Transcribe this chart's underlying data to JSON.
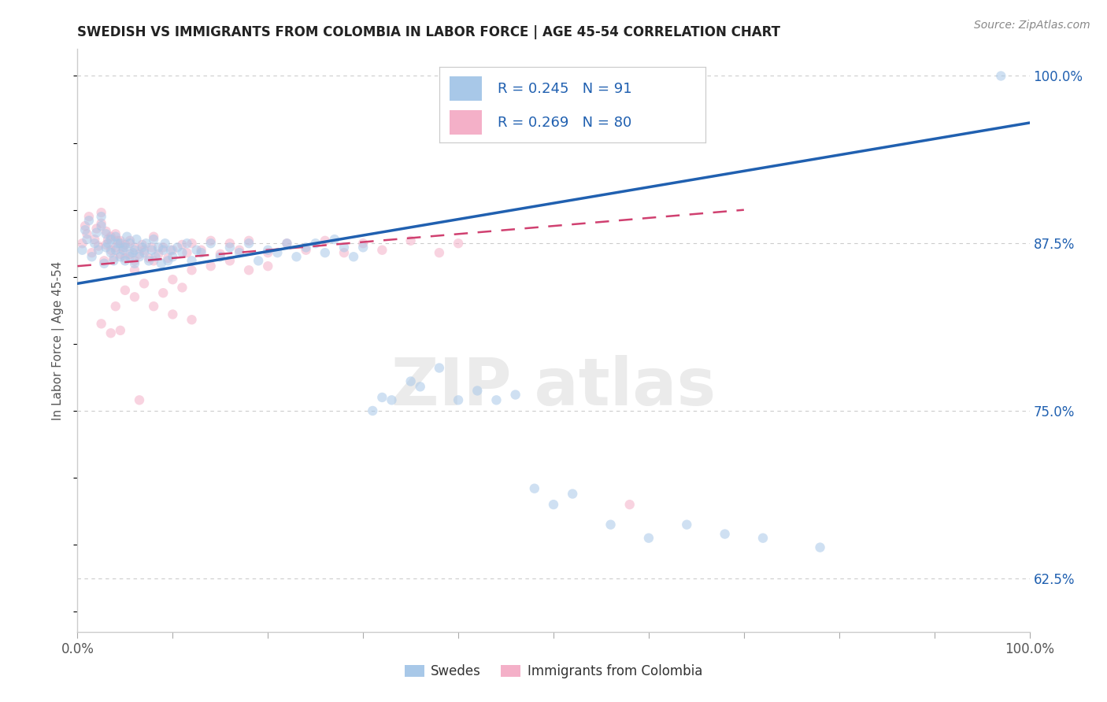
{
  "title": "SWEDISH VS IMMIGRANTS FROM COLOMBIA IN LABOR FORCE | AGE 45-54 CORRELATION CHART",
  "source": "Source: ZipAtlas.com",
  "ylabel": "In Labor Force | Age 45-54",
  "xlim": [
    0.0,
    1.0
  ],
  "ylim": [
    0.585,
    1.02
  ],
  "yticks_right": [
    0.625,
    0.75,
    0.875,
    1.0
  ],
  "ytick_right_labels": [
    "62.5%",
    "75.0%",
    "87.5%",
    "100.0%"
  ],
  "legend_swedes": "Swedes",
  "legend_colombia": "Immigrants from Colombia",
  "blue_color": "#a8c8e8",
  "pink_color": "#f4b0c8",
  "blue_line_color": "#2060b0",
  "pink_line_color": "#d04070",
  "background_color": "#ffffff",
  "grid_color": "#cccccc",
  "marker_size": 80,
  "marker_alpha": 0.55,
  "blue_x": [
    0.005,
    0.008,
    0.01,
    0.012,
    0.015,
    0.018,
    0.02,
    0.022,
    0.025,
    0.025,
    0.028,
    0.03,
    0.03,
    0.032,
    0.035,
    0.035,
    0.038,
    0.04,
    0.04,
    0.042,
    0.045,
    0.045,
    0.048,
    0.05,
    0.05,
    0.052,
    0.055,
    0.055,
    0.058,
    0.06,
    0.06,
    0.062,
    0.065,
    0.068,
    0.07,
    0.072,
    0.075,
    0.078,
    0.08,
    0.082,
    0.085,
    0.088,
    0.09,
    0.092,
    0.095,
    0.098,
    0.1,
    0.105,
    0.11,
    0.115,
    0.12,
    0.125,
    0.13,
    0.14,
    0.15,
    0.16,
    0.17,
    0.18,
    0.19,
    0.2,
    0.21,
    0.22,
    0.23,
    0.24,
    0.25,
    0.26,
    0.27,
    0.28,
    0.29,
    0.3,
    0.31,
    0.32,
    0.33,
    0.35,
    0.36,
    0.38,
    0.4,
    0.42,
    0.44,
    0.46,
    0.48,
    0.5,
    0.52,
    0.56,
    0.6,
    0.64,
    0.68,
    0.72,
    0.78,
    0.97
  ],
  "blue_y": [
    0.87,
    0.885,
    0.878,
    0.892,
    0.865,
    0.875,
    0.883,
    0.87,
    0.888,
    0.895,
    0.86,
    0.872,
    0.882,
    0.875,
    0.868,
    0.878,
    0.862,
    0.87,
    0.88,
    0.875,
    0.865,
    0.875,
    0.87,
    0.862,
    0.872,
    0.88,
    0.865,
    0.875,
    0.868,
    0.86,
    0.87,
    0.878,
    0.865,
    0.872,
    0.868,
    0.875,
    0.862,
    0.87,
    0.878,
    0.865,
    0.872,
    0.86,
    0.87,
    0.875,
    0.862,
    0.87,
    0.865,
    0.872,
    0.868,
    0.875,
    0.862,
    0.87,
    0.868,
    0.875,
    0.865,
    0.872,
    0.868,
    0.875,
    0.862,
    0.87,
    0.868,
    0.875,
    0.865,
    0.872,
    0.875,
    0.868,
    0.878,
    0.872,
    0.865,
    0.872,
    0.75,
    0.76,
    0.758,
    0.772,
    0.768,
    0.782,
    0.758,
    0.765,
    0.758,
    0.762,
    0.692,
    0.68,
    0.688,
    0.665,
    0.655,
    0.665,
    0.658,
    0.655,
    0.648,
    1.0
  ],
  "pink_x": [
    0.005,
    0.008,
    0.01,
    0.012,
    0.015,
    0.018,
    0.02,
    0.022,
    0.025,
    0.025,
    0.028,
    0.03,
    0.03,
    0.032,
    0.035,
    0.035,
    0.038,
    0.04,
    0.04,
    0.042,
    0.045,
    0.045,
    0.048,
    0.05,
    0.05,
    0.055,
    0.055,
    0.06,
    0.06,
    0.065,
    0.068,
    0.07,
    0.075,
    0.078,
    0.08,
    0.085,
    0.09,
    0.095,
    0.1,
    0.11,
    0.115,
    0.12,
    0.13,
    0.14,
    0.15,
    0.16,
    0.17,
    0.18,
    0.2,
    0.22,
    0.24,
    0.26,
    0.28,
    0.3,
    0.32,
    0.35,
    0.38,
    0.4,
    0.06,
    0.08,
    0.1,
    0.12,
    0.14,
    0.16,
    0.18,
    0.2,
    0.05,
    0.07,
    0.09,
    0.11,
    0.04,
    0.06,
    0.08,
    0.1,
    0.12,
    0.025,
    0.035,
    0.045,
    0.065,
    0.58
  ],
  "pink_y": [
    0.875,
    0.888,
    0.882,
    0.895,
    0.868,
    0.878,
    0.886,
    0.873,
    0.89,
    0.898,
    0.862,
    0.874,
    0.884,
    0.878,
    0.87,
    0.88,
    0.864,
    0.872,
    0.882,
    0.877,
    0.867,
    0.877,
    0.872,
    0.864,
    0.874,
    0.877,
    0.867,
    0.862,
    0.872,
    0.867,
    0.874,
    0.87,
    0.864,
    0.872,
    0.88,
    0.867,
    0.872,
    0.864,
    0.87,
    0.874,
    0.868,
    0.875,
    0.87,
    0.877,
    0.867,
    0.875,
    0.87,
    0.877,
    0.868,
    0.875,
    0.87,
    0.877,
    0.868,
    0.875,
    0.87,
    0.877,
    0.868,
    0.875,
    0.855,
    0.862,
    0.848,
    0.855,
    0.858,
    0.862,
    0.855,
    0.858,
    0.84,
    0.845,
    0.838,
    0.842,
    0.828,
    0.835,
    0.828,
    0.822,
    0.818,
    0.815,
    0.808,
    0.81,
    0.758,
    0.68
  ],
  "blue_trend_x": [
    0.0,
    1.0
  ],
  "blue_trend_y": [
    0.845,
    0.965
  ],
  "pink_trend_x": [
    0.0,
    0.7
  ],
  "pink_trend_y": [
    0.858,
    0.9
  ]
}
